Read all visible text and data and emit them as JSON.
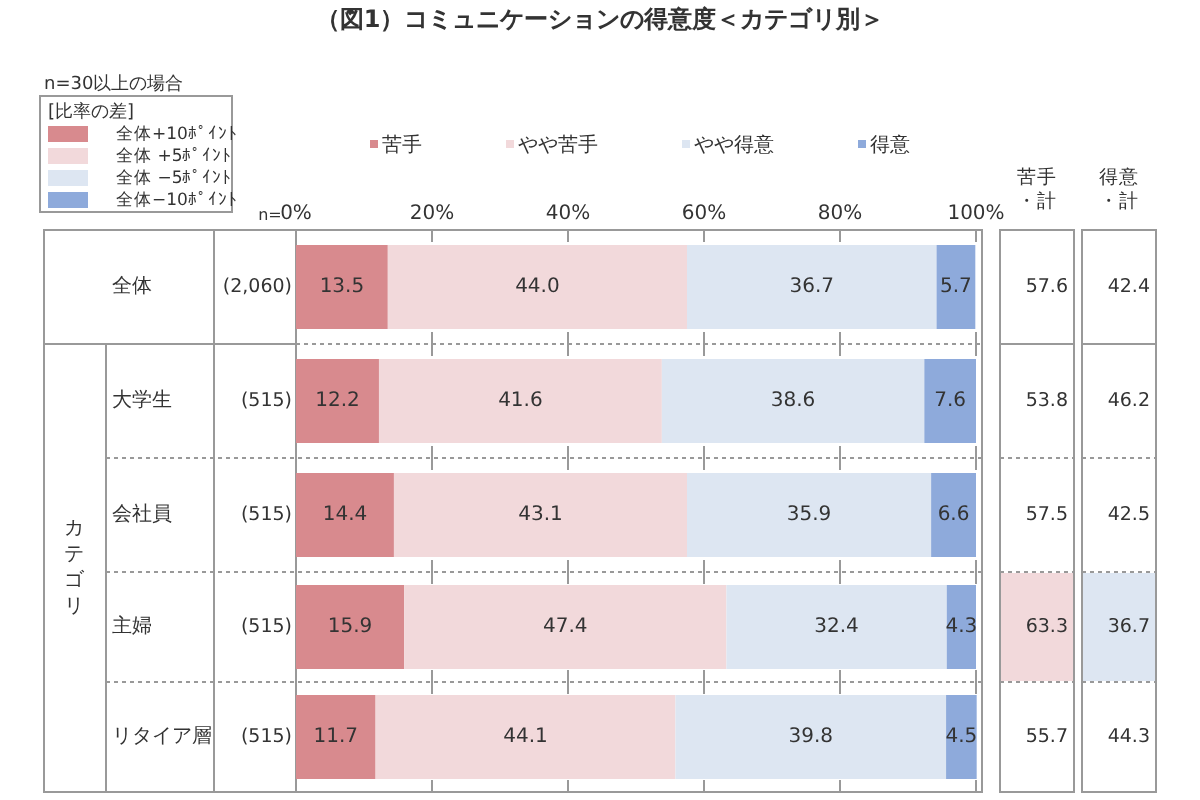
{
  "chart_data": [
    {
      "type": "bar",
      "title": "（図1）コミュニケーションの得意度＜カテゴリ別＞",
      "orientation": "horizontal",
      "stacked": true,
      "categories": [
        "全体",
        "大学生",
        "会社員",
        "主婦",
        "リタイア層"
      ],
      "series": [
        {
          "name": "苦手",
          "color": "#d88a8e",
          "values": [
            13.5,
            12.2,
            14.4,
            15.9,
            11.7
          ],
          "value_labels": [
            "13.5",
            "12.2",
            "14.4",
            "15.9",
            "11.7"
          ]
        },
        {
          "name": "やや苦手",
          "color": "#f2d9db",
          "values": [
            44.0,
            41.6,
            43.1,
            47.4,
            44.1
          ],
          "value_labels": [
            "44.0",
            "41.6",
            "43.1",
            "47.4",
            "44.1"
          ]
        },
        {
          "name": "やや得意",
          "color": "#dde6f2",
          "values": [
            36.7,
            38.6,
            35.9,
            32.4,
            39.8
          ],
          "value_labels": [
            "36.7",
            "38.6",
            "35.9",
            "32.4",
            "39.8"
          ]
        },
        {
          "name": "得意",
          "color": "#8eaadb",
          "values": [
            5.7,
            7.6,
            6.6,
            4.3,
            4.5
          ],
          "value_labels": [
            "5.7",
            "7.6",
            "6.6",
            "4.3",
            "4.5"
          ]
        }
      ],
      "xlim": [
        0,
        100
      ],
      "xticks": [
        {
          "value": 0,
          "label": "0%"
        },
        {
          "value": 20,
          "label": "20%"
        },
        {
          "value": 40,
          "label": "40%"
        },
        {
          "value": 60,
          "label": "60%"
        },
        {
          "value": 80,
          "label": "80%"
        },
        {
          "value": 100,
          "label": "100%"
        }
      ],
      "legend": "top",
      "annotations": [
        "n=30以上の場合",
        "n=",
        "(2,060)",
        "(515)",
        "(515)",
        "(515)",
        "(515)",
        "カテゴリ"
      ]
    },
    {
      "type": "other",
      "legend_title": "[比率の差]",
      "annotations": [
        "全体+10ﾎﾟｲﾝﾄ",
        "全体 +5ﾎﾟｲﾝﾄ",
        "全体 −5ﾎﾟｲﾝﾄ",
        "全体−10ﾎﾟｲﾝﾄ",
        "苦手・計",
        "得意・計",
        "57.6",
        "42.4",
        "53.8",
        "46.2",
        "57.5",
        "42.5",
        "63.3",
        "36.7",
        "55.7",
        "44.3"
      ],
      "colors": [
        "#ffffff",
        "#ffffff",
        "#ffffff",
        "#ffffff",
        "#ffffff",
        "#ffffff",
        "#f2d9db",
        "#dde6f2",
        "#ffffff",
        "#ffffff"
      ]
    }
  ]
}
